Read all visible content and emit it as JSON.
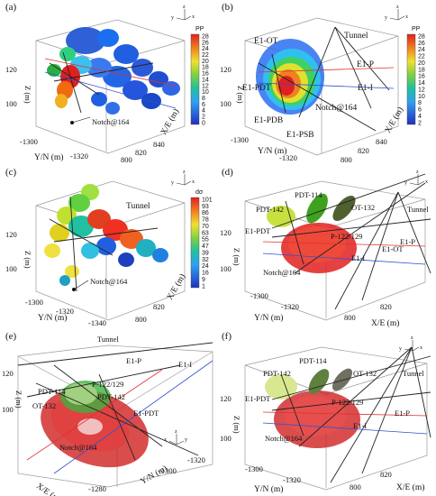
{
  "panels": {
    "a": {
      "label": "(a)",
      "z_label": "Z (m)",
      "y_label": "Y/N (m)",
      "x_label": "X/E (m)",
      "z_ticks": [
        "120",
        "100"
      ],
      "y_ticks": [
        "-1300",
        "-1320"
      ],
      "x_ticks": [
        "840",
        "820",
        "800"
      ],
      "annotation": "Notch@164",
      "colorbar": {
        "title": "PP",
        "ticks": [
          "28",
          "26",
          "24",
          "22",
          "20",
          "18",
          "16",
          "14",
          "12",
          "10",
          "8",
          "6",
          "4",
          "2",
          "0"
        ]
      }
    },
    "b": {
      "label": "(b)",
      "z_label": "Z (m)",
      "y_label": "Y/N (m)",
      "x_label": "X/E (m)",
      "z_ticks": [
        "120",
        "100"
      ],
      "y_ticks": [
        "-1300",
        "-1320"
      ],
      "x_ticks": [
        "840",
        "820",
        "800"
      ],
      "labels": [
        "E1-OT",
        "Tunnel",
        "E1-P",
        "E1-PDT",
        "E1-I",
        "E1-PDB",
        "Notch@164",
        "E1-PSB"
      ],
      "colorbar": {
        "title": "PP",
        "ticks": [
          "28",
          "26",
          "24",
          "22",
          "20",
          "18",
          "16",
          "14",
          "12",
          "10",
          "8",
          "6",
          "4",
          "2"
        ]
      }
    },
    "c": {
      "label": "(c)",
      "z_label": "Z (m)",
      "y_label": "Y/N (m)",
      "x_label": "X/E (m)",
      "z_ticks": [
        "120",
        "100"
      ],
      "y_ticks": [
        "-1300",
        "-1320",
        "-1340"
      ],
      "x_ticks": [
        "820",
        "800"
      ],
      "labels": [
        "Tunnel",
        "Notch@164"
      ],
      "colorbar": {
        "title": "dσ",
        "ticks": [
          "101",
          "93",
          "86",
          "78",
          "70",
          "63",
          "55",
          "47",
          "39",
          "32",
          "24",
          "16",
          "9",
          "1"
        ]
      }
    },
    "d": {
      "label": "(d)",
      "z_label": "Z (m)",
      "y_label": "Y/N (m)",
      "x_label": "X/E (m)",
      "z_ticks": [
        "120",
        "100"
      ],
      "y_ticks": [
        "-1300",
        "-1320"
      ],
      "x_ticks": [
        "820",
        "800"
      ],
      "labels": [
        "PDT-114",
        "PDT-142",
        "OT-132",
        "Tunnel",
        "E1-PDT",
        "E1-P",
        "P-122/129",
        "E1-OT",
        "E1-I",
        "Notch@164"
      ]
    },
    "e": {
      "label": "(e)",
      "z_label": "Z (m)",
      "y_label": "Y/N (m)",
      "x_label": "X/E (m)",
      "z_ticks": [
        "120",
        "100"
      ],
      "y_ticks": [
        "-1300",
        "-1320"
      ],
      "x_ticks": [
        "-1280"
      ],
      "labels": [
        "Tunnel",
        "E1-P",
        "E1-I",
        "PDT-114",
        "P-122/129",
        "OT-132",
        "PDT-142",
        "E1-PDT",
        "Notch@164"
      ]
    },
    "f": {
      "label": "(f)",
      "z_label": "Z (m)",
      "y_label": "Y/N (m)",
      "x_label": "X/E (m)",
      "z_ticks": [
        "120",
        "100"
      ],
      "y_ticks": [
        "-1300",
        "-1320"
      ],
      "x_ticks": [
        "820",
        "800"
      ],
      "labels": [
        "PDT-114",
        "PDT-142",
        "OT-132",
        "Tunnel",
        "E1-PDT",
        "P-122/129",
        "E1-P",
        "E1-I",
        "Notch@164"
      ]
    }
  },
  "axis_triad": {
    "x": "x",
    "y": "y",
    "z": "z"
  },
  "colors": {
    "axis_box": "#888888",
    "wells": "#222222",
    "e1_p": "#e03030",
    "e1_i": "#3050d0",
    "notch": "#c02020"
  }
}
